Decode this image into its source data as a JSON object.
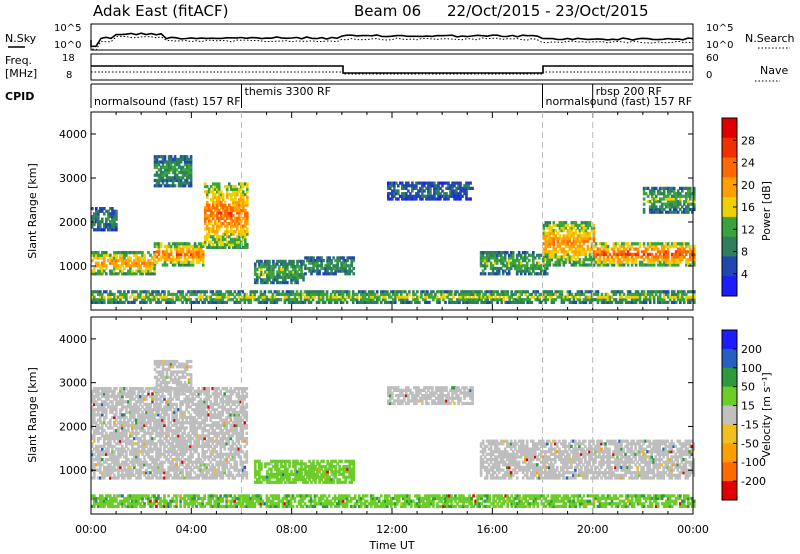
{
  "header": {
    "radar": "Adak East (fitACF)",
    "beam": "Beam 06",
    "dates": "22/Oct/2015 - 23/Oct/2015"
  },
  "left_labels": {
    "nsky": "N.Sky",
    "nsky_ticks": [
      "10^5",
      "10^0"
    ],
    "freq": "Freq.",
    "freq_unit": "[MHz]",
    "freq_ticks": [
      "18",
      "8"
    ],
    "cpid": "CPID"
  },
  "right_labels": {
    "nsearch": "N.Search",
    "nsearch_ticks": [
      "10^5",
      "10^0"
    ],
    "nave": "Nave",
    "nave_ticks": [
      "60",
      "0"
    ]
  },
  "cpid_segments": [
    {
      "label": "normalsound (fast) 157 RF",
      "start_h": 0
    },
    {
      "label": "themis 3300 RF",
      "start_h": 6
    },
    {
      "label": "normalsound (fast) 157 RF",
      "start_h": 18
    },
    {
      "label": "rbsp 200 RF",
      "start_h": 20
    }
  ],
  "colors": {
    "power": [
      "#1c1cff",
      "#2147b0",
      "#2e7f5e",
      "#3aa43a",
      "#f0d000",
      "#ffa000",
      "#ff6a00",
      "#f03000",
      "#e00000"
    ],
    "velocity": [
      "#e00000",
      "#ff6a00",
      "#ffa000",
      "#f0c020",
      "#c0c0c0",
      "#6ccc2a",
      "#2e9a3e",
      "#2360c0",
      "#1c1cff"
    ],
    "ground_scatter": "#bebebe"
  },
  "chart_data": [
    {
      "type": "heatmap",
      "panel": "power",
      "ylabel": "Slant Range [km]",
      "ylim": [
        0,
        4500
      ],
      "xlim": [
        0,
        24
      ],
      "yticks": [
        1000,
        2000,
        3000,
        4000
      ],
      "colorbar_label": "Power [dB]",
      "colorbar_ticks": [
        "4",
        "8",
        "12",
        "16",
        "20",
        "24",
        "28"
      ],
      "colorbar_range": [
        0,
        32
      ],
      "regions": [
        {
          "t": [
            0.0,
            2.5
          ],
          "r0": 800,
          "r1": 1300,
          "level": 20,
          "note": "band"
        },
        {
          "t": [
            2.5,
            4.5
          ],
          "r0": 1000,
          "r1": 1500,
          "level": 22
        },
        {
          "t": [
            4.5,
            6.2
          ],
          "r0": 1400,
          "r1": 2900,
          "level": 22
        },
        {
          "t": [
            0.0,
            1.0
          ],
          "r0": 1800,
          "r1": 2300,
          "level": 8
        },
        {
          "t": [
            2.5,
            4.0
          ],
          "r0": 2800,
          "r1": 3500,
          "level": 10
        },
        {
          "t": [
            6.5,
            8.5
          ],
          "r0": 600,
          "r1": 1100,
          "level": 12
        },
        {
          "t": [
            8.5,
            10.5
          ],
          "r0": 800,
          "r1": 1200,
          "level": 10
        },
        {
          "t": [
            11.8,
            15.2
          ],
          "r0": 2500,
          "r1": 2900,
          "level": 6
        },
        {
          "t": [
            15.5,
            18.2
          ],
          "r0": 800,
          "r1": 1300,
          "level": 12
        },
        {
          "t": [
            18.0,
            20.0
          ],
          "r0": 1000,
          "r1": 2000,
          "level": 20
        },
        {
          "t": [
            20.0,
            24.0
          ],
          "r0": 1000,
          "r1": 1500,
          "level": 24
        },
        {
          "t": [
            22.0,
            24.0
          ],
          "r0": 2200,
          "r1": 2800,
          "level": 12
        },
        {
          "t": [
            0.0,
            24.0
          ],
          "r0": 150,
          "r1": 400,
          "level": 14
        }
      ]
    },
    {
      "type": "heatmap",
      "panel": "velocity",
      "ylabel": "Slant Range [km]",
      "xlabel": "Time UT",
      "ylim": [
        0,
        4500
      ],
      "xlim": [
        0,
        24
      ],
      "yticks": [
        1000,
        2000,
        3000,
        4000
      ],
      "xticks": [
        "00:00",
        "04:00",
        "08:00",
        "12:00",
        "16:00",
        "20:00",
        "00:00"
      ],
      "colorbar_label": "Velocity [m s⁻¹]",
      "colorbar_ticks": [
        "-200",
        "-100",
        "-50",
        "-15",
        "15",
        "50",
        "100",
        "200"
      ],
      "regions": [
        {
          "t": [
            0.0,
            6.2
          ],
          "r0": 800,
          "r1": 2900,
          "v": 0,
          "note": "ground scatter"
        },
        {
          "t": [
            2.5,
            4.0
          ],
          "r0": 2800,
          "r1": 3500,
          "v": 0
        },
        {
          "t": [
            6.5,
            10.5
          ],
          "r0": 700,
          "r1": 1200,
          "v": 30
        },
        {
          "t": [
            11.8,
            15.2
          ],
          "r0": 2500,
          "r1": 2900,
          "v": 0
        },
        {
          "t": [
            15.5,
            24.0
          ],
          "r0": 800,
          "r1": 1700,
          "v": 0
        },
        {
          "t": [
            0.0,
            24.0
          ],
          "r0": 150,
          "r1": 400,
          "v": 40
        }
      ]
    }
  ]
}
